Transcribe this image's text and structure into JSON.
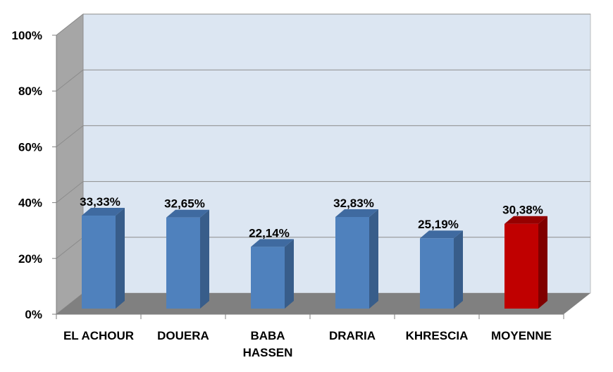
{
  "chart_data": {
    "type": "bar",
    "title": "",
    "xlabel": "",
    "ylabel": "",
    "categories": [
      "EL ACHOUR",
      "DOUERA",
      "BABA HASSEN",
      "DRARIA",
      "KHRESCIA",
      "MOYENNE"
    ],
    "category_lines": [
      [
        "EL ACHOUR"
      ],
      [
        "DOUERA"
      ],
      [
        "BABA",
        "HASSEN"
      ],
      [
        "DRARIA"
      ],
      [
        "KHRESCIA"
      ],
      [
        "MOYENNE"
      ]
    ],
    "values": [
      33.33,
      32.65,
      22.14,
      32.83,
      25.19,
      30.38
    ],
    "data_labels": [
      "33,33%",
      "32,65%",
      "22,14%",
      "32,83%",
      "25,19%",
      "30,38%"
    ],
    "highlight_index": 5,
    "ylim": [
      0,
      100
    ],
    "yticks": [
      0,
      20,
      40,
      60,
      80,
      100
    ],
    "ytick_labels": [
      "0%",
      "20%",
      "40%",
      "60%",
      "80%",
      "100%"
    ],
    "grid": true,
    "legend": "none",
    "colors": {
      "bar": "#4f81bd",
      "bar_side": "#385d8a",
      "bar_top": "#3f6aa0",
      "highlight": "#c00000",
      "highlight_side": "#800000",
      "highlight_top": "#960000",
      "back_wall": "#dce6f2",
      "side_wall": "#a6a6a6",
      "floor": "#808080",
      "gridline": "#8c8c8c"
    }
  }
}
